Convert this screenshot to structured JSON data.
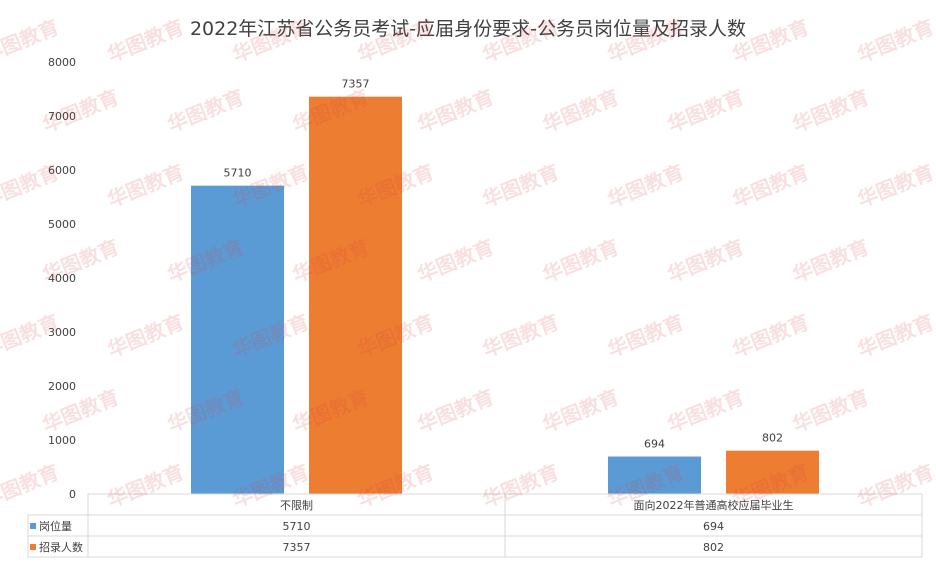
{
  "chart_data": {
    "type": "bar",
    "title": "2022年江苏省公务员考试-应届身份要求-公务员岗位量及招录人数",
    "categories": [
      "不限制",
      "面向2022年普通高校应届毕业生"
    ],
    "series": [
      {
        "name": "岗位量",
        "values": [
          5710,
          694
        ],
        "color": "#5b9bd5"
      },
      {
        "name": "招录人数",
        "values": [
          7357,
          802
        ],
        "color": "#ed7d31"
      }
    ],
    "ylim": [
      0,
      8000
    ],
    "yticks": [
      0,
      1000,
      2000,
      3000,
      4000,
      5000,
      6000,
      7000,
      8000
    ],
    "grid": false,
    "legend": "data-table-below"
  },
  "watermark": "华图教育"
}
